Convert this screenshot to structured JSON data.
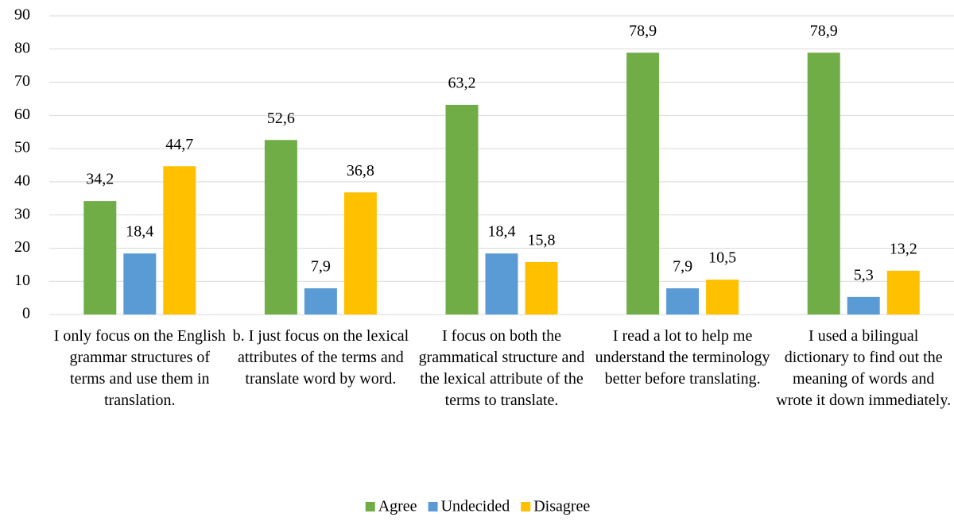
{
  "chart_data": {
    "type": "bar",
    "categories": [
      "I only focus on the English grammar structures of terms and use them in translation.",
      "b. I just focus on the lexical attributes of the terms and translate word by word.",
      "I focus on both the grammatical structure and the lexical attribute of the terms to translate.",
      "I read a lot to help me understand the terminology better before translating.",
      "I used a bilingual dictionary to find out the meaning of words and wrote it down immediately."
    ],
    "series": [
      {
        "name": "Agree",
        "color": "#70ad47",
        "values": [
          34.2,
          52.6,
          63.2,
          78.9,
          78.9
        ],
        "value_labels": [
          "34,2",
          "52,6",
          "63,2",
          "78,9",
          "78,9"
        ]
      },
      {
        "name": "Undecided",
        "color": "#5b9bd5",
        "values": [
          18.4,
          7.9,
          18.4,
          7.9,
          5.3
        ],
        "value_labels": [
          "18,4",
          "7,9",
          "18,4",
          "7,9",
          "5,3"
        ]
      },
      {
        "name": "Disagree",
        "color": "#ffc000",
        "values": [
          44.7,
          36.8,
          15.8,
          10.5,
          13.2
        ],
        "value_labels": [
          "44,7",
          "36,8",
          "15,8",
          "10,5",
          "13,2"
        ]
      }
    ],
    "ylim": [
      0,
      90
    ],
    "yticks": [
      0,
      10,
      20,
      30,
      40,
      50,
      60,
      70,
      80,
      90
    ],
    "grid": true,
    "legend": "bottom"
  }
}
